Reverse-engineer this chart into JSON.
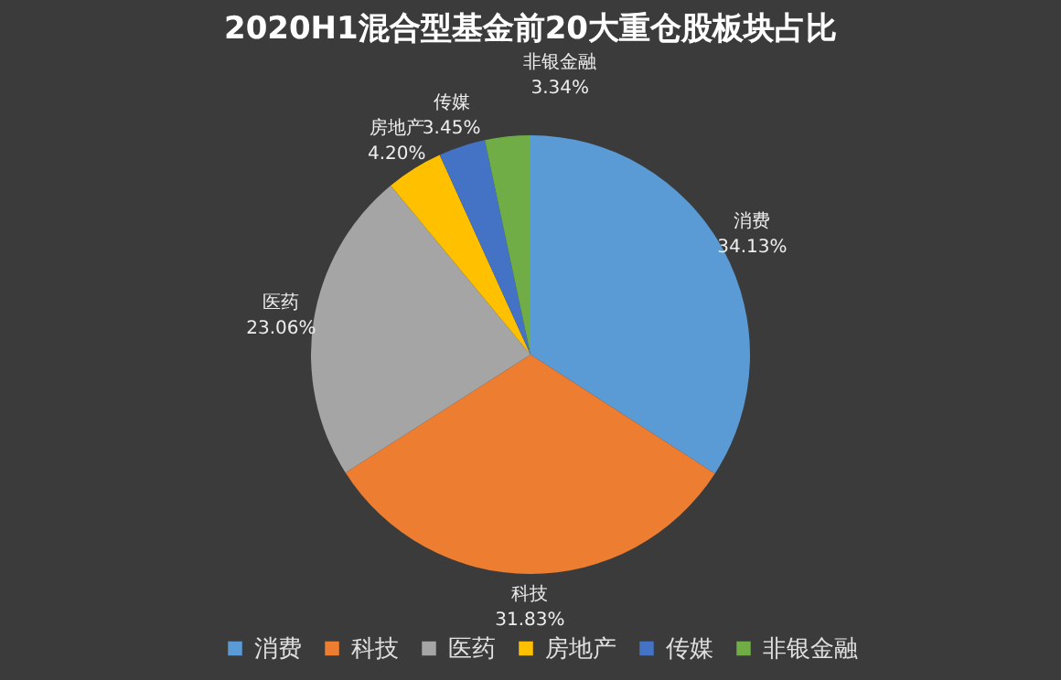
{
  "chart_data": {
    "type": "pie",
    "title": "2020H1混合型基金前20大重仓股板块占比",
    "categories": [
      "消费",
      "科技",
      "医药",
      "房地产",
      "传媒",
      "非银金融"
    ],
    "values": [
      34.13,
      31.83,
      23.06,
      4.2,
      3.45,
      3.34
    ],
    "value_labels": [
      "34.13%",
      "31.83%",
      "23.06%",
      "4.20%",
      "3.45%",
      "3.34%"
    ],
    "colors": [
      "#5b9bd5",
      "#ed7d31",
      "#a5a5a5",
      "#ffc000",
      "#4472c4",
      "#70ad47"
    ],
    "legend": "bottom"
  }
}
